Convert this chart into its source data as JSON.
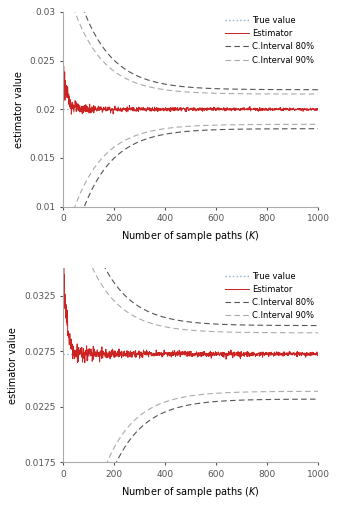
{
  "plot1": {
    "true_value": 0.02,
    "ylim": [
      0.01,
      0.03
    ],
    "yticks": [
      0.01,
      0.015,
      0.02,
      0.025,
      0.03
    ],
    "estimator_noise_scale": 0.0012,
    "estimator_decay": 15,
    "estimator_init_spike": 0.004,
    "ci80_upper_asymp": 0.022,
    "ci80_lower_asymp": 0.018,
    "ci90_upper_asymp": 0.02155,
    "ci90_lower_asymp": 0.01845,
    "ci_decay": 120
  },
  "plot2": {
    "true_value": 0.02725,
    "ylim": [
      0.0175,
      0.035
    ],
    "yticks": [
      0.0175,
      0.0225,
      0.0275,
      0.0325
    ],
    "estimator_noise_scale": 0.0018,
    "estimator_decay": 12,
    "estimator_init_spike": 0.01,
    "ci80_upper_asymp": 0.0298,
    "ci80_lower_asymp": 0.0232,
    "ci90_upper_asymp": 0.02915,
    "ci90_lower_asymp": 0.0239,
    "ci_decay": 120
  },
  "xlim": [
    0,
    1000
  ],
  "xticks": [
    0,
    200,
    400,
    600,
    800,
    1000
  ],
  "xlabel": "Number of sample paths ($K$)",
  "ylabel": "estimator value",
  "legend_labels": [
    "True value",
    "Estimator",
    "C.Interval 80%",
    "C.Interval 90%"
  ],
  "true_color": "#8ab0d0",
  "estimator_color": "#cc2222",
  "ci80_color": "#555555",
  "ci90_color": "#aaaaaa",
  "bg_color": "#ffffff"
}
